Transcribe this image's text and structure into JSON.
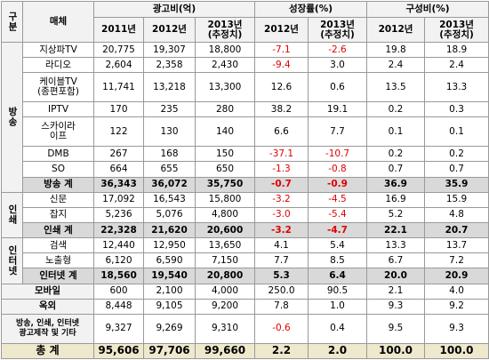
{
  "table": {
    "header": {
      "category": "구분",
      "medium": "매체",
      "groups": [
        {
          "label": "광고비(억)",
          "columns": [
            "2011년",
            "2012년",
            "2013년\n(추정치)"
          ]
        },
        {
          "label": "성장률(%)",
          "columns": [
            "2012년",
            "2013년\n(추정치)"
          ]
        },
        {
          "label": "구성비(%)",
          "columns": [
            "2012년",
            "2013년\n(추정치)"
          ]
        }
      ]
    },
    "sections": [
      {
        "label": "방송",
        "rows": [
          {
            "name": "지상파TV",
            "cells": [
              "20,775",
              "19,307",
              "18,800",
              "-7.1",
              "-2.6",
              "19.8",
              "18.9"
            ]
          },
          {
            "name": "라디오",
            "cells": [
              "2,604",
              "2,358",
              "2,430",
              "-9.4",
              "3.0",
              "2.4",
              "2.4"
            ]
          },
          {
            "name": "케이블TV\n(종편포함)",
            "cells": [
              "11,741",
              "13,218",
              "13,300",
              "12.6",
              "0.6",
              "13.5",
              "13.3"
            ]
          },
          {
            "name": "IPTV",
            "cells": [
              "170",
              "235",
              "280",
              "38.2",
              "19.1",
              "0.2",
              "0.3"
            ]
          },
          {
            "name": "스카이라\n이프",
            "cells": [
              "122",
              "130",
              "140",
              "6.6",
              "7.7",
              "0.1",
              "0.1"
            ]
          },
          {
            "name": "DMB",
            "cells": [
              "267",
              "168",
              "150",
              "-37.1",
              "-10.7",
              "0.2",
              "0.2"
            ]
          },
          {
            "name": "SO",
            "cells": [
              "664",
              "655",
              "650",
              "-1.3",
              "-0.8",
              "0.7",
              "0.7"
            ]
          }
        ],
        "total": {
          "name": "방송 계",
          "cells": [
            "36,343",
            "36,072",
            "35,750",
            "-0.7",
            "-0.9",
            "36.9",
            "35.9"
          ]
        }
      },
      {
        "label": "인쇄",
        "rows": [
          {
            "name": "신문",
            "cells": [
              "17,092",
              "16,543",
              "15,800",
              "-3.2",
              "-4.5",
              "16.9",
              "15.9"
            ]
          },
          {
            "name": "잡지",
            "cells": [
              "5,236",
              "5,076",
              "4,800",
              "-3.0",
              "-5.4",
              "5.2",
              "4.8"
            ]
          }
        ],
        "total": {
          "name": "인쇄 계",
          "cells": [
            "22,328",
            "21,620",
            "20,600",
            "-3.2",
            "-4.7",
            "22.1",
            "20.7"
          ]
        }
      },
      {
        "label": "인터넷",
        "rows": [
          {
            "name": "검색",
            "cells": [
              "12,440",
              "12,950",
              "13,650",
              "4.1",
              "5.4",
              "13.3",
              "13.7"
            ]
          },
          {
            "name": "노출형",
            "cells": [
              "6,120",
              "6,590",
              "7,150",
              "7.7",
              "8.5",
              "6.7",
              "7.2"
            ]
          }
        ],
        "total": {
          "name": "인터넷 계",
          "cells": [
            "18,560",
            "19,540",
            "20,800",
            "5.3",
            "6.4",
            "20.0",
            "20.9"
          ]
        }
      }
    ],
    "others": [
      {
        "name": "모바일",
        "cells": [
          "600",
          "2,100",
          "4,000",
          "250.0",
          "90.5",
          "2.1",
          "4.0"
        ]
      },
      {
        "name": "옥외",
        "cells": [
          "8,448",
          "9,105",
          "9,200",
          "7.8",
          "1.0",
          "9.3",
          "9.2"
        ]
      },
      {
        "name": "방송, 인쇄, 인터넷\n광고제작 및 기타",
        "cells": [
          "9,327",
          "9,269",
          "9,310",
          "-0.6",
          "0.4",
          "9.5",
          "9.3"
        ]
      }
    ],
    "grand_total": {
      "name": "총 계",
      "cells": [
        "95,606",
        "97,706",
        "99,660",
        "2.2",
        "2.0",
        "100.0",
        "100.0"
      ]
    }
  }
}
